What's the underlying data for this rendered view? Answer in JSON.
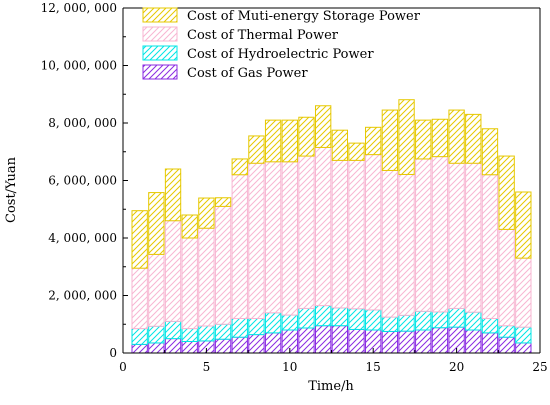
{
  "chart_data": {
    "type": "bar",
    "stacked": true,
    "xlabel": "Time/h",
    "ylabel": "Cost/Yuan",
    "xlim": [
      0,
      25
    ],
    "ylim": [
      0,
      12000000
    ],
    "xticks": [
      0,
      5,
      10,
      15,
      20,
      25
    ],
    "yticks": [
      0,
      2000000,
      4000000,
      6000000,
      8000000,
      10000000,
      12000000
    ],
    "ytick_labels": [
      "0",
      "2, 000, 000",
      "4, 000, 000",
      "6, 000, 000",
      "8, 000, 000",
      "10, 000, 000",
      "12, 000, 000"
    ],
    "grid": false,
    "legend_position": "top",
    "x": [
      1,
      2,
      3,
      4,
      5,
      6,
      7,
      8,
      9,
      10,
      11,
      12,
      13,
      14,
      15,
      16,
      17,
      18,
      19,
      20,
      21,
      22,
      23,
      24
    ],
    "series": [
      {
        "name": "Cost of Gas Power",
        "color": "#8a2be2",
        "values": [
          300000,
          350000,
          500000,
          400000,
          420000,
          480000,
          550000,
          640000,
          700000,
          800000,
          870000,
          950000,
          950000,
          820000,
          800000,
          750000,
          760000,
          800000,
          880000,
          900000,
          800000,
          700000,
          550000,
          350000
        ]
      },
      {
        "name": "Cost of Hydroelectric Power",
        "color": "#00e5e5",
        "values": [
          550000,
          580000,
          600000,
          450000,
          520000,
          520000,
          650000,
          560000,
          700000,
          520000,
          680000,
          700000,
          620000,
          720000,
          700000,
          500000,
          550000,
          650000,
          550000,
          650000,
          620000,
          500000,
          400000,
          550000
        ]
      },
      {
        "name": "Cost of Thermal Power",
        "color": "#f7b6d2",
        "values": [
          2100000,
          2500000,
          3500000,
          3150000,
          3400000,
          4100000,
          5000000,
          5400000,
          5250000,
          5330000,
          5300000,
          5500000,
          5130000,
          5160000,
          5400000,
          5100000,
          4900000,
          5300000,
          5400000,
          5050000,
          5180000,
          5000000,
          3350000,
          2400000
        ]
      },
      {
        "name": "Cost of Muti-energy Storage Power",
        "color": "#e6c800",
        "values": [
          2000000,
          2150000,
          1800000,
          800000,
          1050000,
          300000,
          550000,
          950000,
          1450000,
          1450000,
          1350000,
          1450000,
          1050000,
          600000,
          950000,
          2100000,
          2600000,
          1350000,
          1300000,
          1850000,
          1700000,
          1600000,
          2550000,
          2300000
        ]
      }
    ]
  }
}
